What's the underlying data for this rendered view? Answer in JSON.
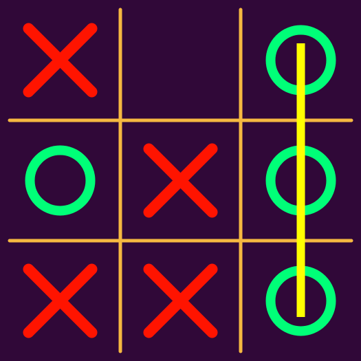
{
  "colors": {
    "background": "#300838",
    "grid": "#F5B841",
    "x_mark": "#FF1400",
    "o_mark": "#00FF78",
    "win_line": "#FFFF00"
  },
  "board": {
    "cells": [
      [
        "X",
        "",
        "O"
      ],
      [
        "O",
        "X",
        "O"
      ],
      [
        "X",
        "X",
        "O"
      ]
    ],
    "winner": "O",
    "winning_line": {
      "type": "column",
      "index": 2
    }
  }
}
